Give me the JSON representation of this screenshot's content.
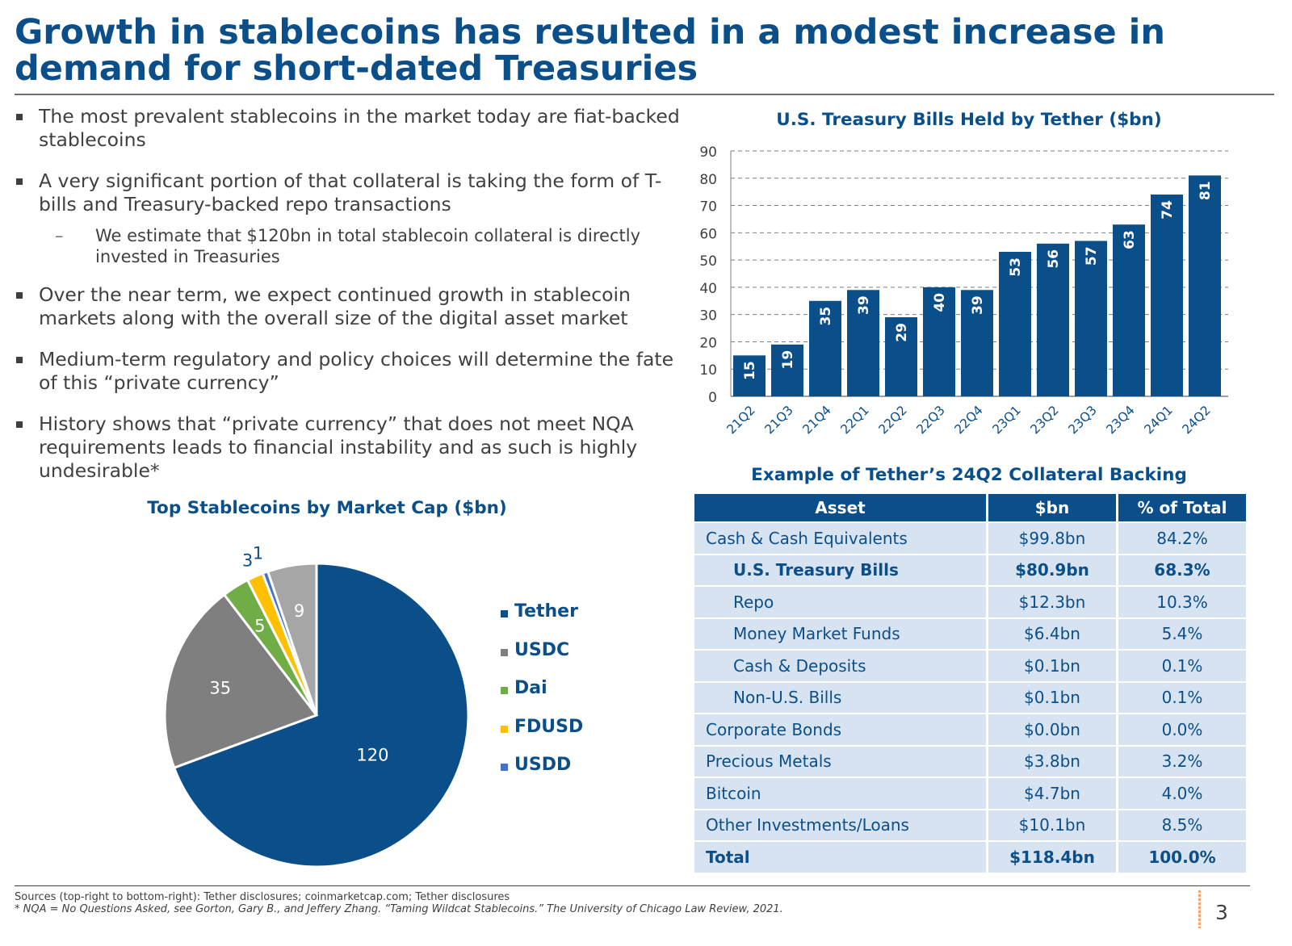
{
  "slide": {
    "title": "Growth in stablecoins has resulted in a modest increase in demand for short-dated Treasuries",
    "page_number": "3"
  },
  "bullets": [
    "The most prevalent stablecoins in the market today are fiat-backed stablecoins",
    "A very significant portion of that collateral is taking the form of T-bills and Treasury-backed repo transactions",
    "Over the near term, we expect continued growth in stablecoin markets along with the overall size of the digital asset market",
    "Medium-term regulatory and policy choices will determine the fate of this “private currency”",
    "History shows that “private currency” that does not meet NQA requirements leads to financial instability and as such is highly undesirable*"
  ],
  "sub_bullets": [
    "We estimate that $120bn in total stablecoin collateral is directly invested in Treasuries"
  ],
  "footnotes": {
    "sources": "Sources (top-right to bottom-right): Tether disclosures; coinmarketcap.com; Tether disclosures",
    "nqa": "* NQA = No Questions Asked, see Gorton, Gary B., and Jeffery Zhang. “Taming Wildcat Stablecoins.” The University of Chicago Law Review, 2021."
  },
  "table": {
    "title": "Example of Tether’s 24Q2 Collateral Backing",
    "headers": [
      "Asset",
      "$bn",
      "% of Total"
    ],
    "rows": [
      {
        "asset": "Cash & Cash Equivalents",
        "bn": "$99.8bn",
        "pct": "84.2%"
      },
      {
        "asset": "U.S. Treasury Bills",
        "bn": "$80.9bn",
        "pct": "68.3%"
      },
      {
        "asset": "Repo",
        "bn": "$12.3bn",
        "pct": "10.3%"
      },
      {
        "asset": "Money Market Funds",
        "bn": "$6.4bn",
        "pct": "5.4%"
      },
      {
        "asset": "Cash & Deposits",
        "bn": "$0.1bn",
        "pct": "0.1%"
      },
      {
        "asset": "Non-U.S. Bills",
        "bn": "$0.1bn",
        "pct": "0.1%"
      },
      {
        "asset": "Corporate Bonds",
        "bn": "$0.0bn",
        "pct": "0.0%"
      },
      {
        "asset": "Precious Metals",
        "bn": "$3.8bn",
        "pct": "3.2%"
      },
      {
        "asset": "Bitcoin",
        "bn": "$4.7bn",
        "pct": "4.0%"
      },
      {
        "asset": "Other Investments/Loans",
        "bn": "$10.1bn",
        "pct": "8.5%"
      },
      {
        "asset": "Total",
        "bn": "$118.4bn",
        "pct": "100.0%"
      }
    ]
  },
  "colors": {
    "brand_blue": "#0b4f8a",
    "usdc_gray": "#7f7f7f",
    "dai_green": "#70ad47",
    "fdusd_yellow": "#ffc000",
    "usdd_blue": "#4472c4",
    "other_gray": "#a6a6a6",
    "table_row": "#d7e3f1"
  },
  "chart_data": [
    {
      "type": "bar",
      "title": "U.S. Treasury Bills Held by Tether ($bn)",
      "categories": [
        "21Q2",
        "21Q3",
        "21Q4",
        "22Q1",
        "22Q2",
        "22Q3",
        "22Q4",
        "23Q1",
        "23Q2",
        "23Q3",
        "23Q4",
        "24Q1",
        "24Q2"
      ],
      "values": [
        15,
        19,
        35,
        39,
        29,
        40,
        39,
        53,
        56,
        57,
        63,
        74,
        81
      ],
      "ylim": [
        0,
        90
      ],
      "yticks": [
        0,
        10,
        20,
        30,
        40,
        50,
        60,
        70,
        80,
        90
      ],
      "grid": true,
      "data_labels": true
    },
    {
      "type": "pie",
      "title": "Top Stablecoins by Market Cap ($bn)",
      "slices": [
        {
          "label": "Tether",
          "value": 120,
          "color": "#0b4f8a"
        },
        {
          "label": "USDC",
          "value": 35,
          "color": "#7f7f7f"
        },
        {
          "label": "Dai",
          "value": 5,
          "color": "#70ad47"
        },
        {
          "label": "FDUSD",
          "value": 3,
          "color": "#ffc000"
        },
        {
          "label": "USDD",
          "value": 1,
          "color": "#4472c4"
        },
        {
          "label": "",
          "value": 9,
          "color": "#a6a6a6"
        }
      ],
      "legend": [
        "Tether",
        "USDC",
        "Dai",
        "FDUSD",
        "USDD"
      ],
      "legend_position": "right"
    }
  ]
}
